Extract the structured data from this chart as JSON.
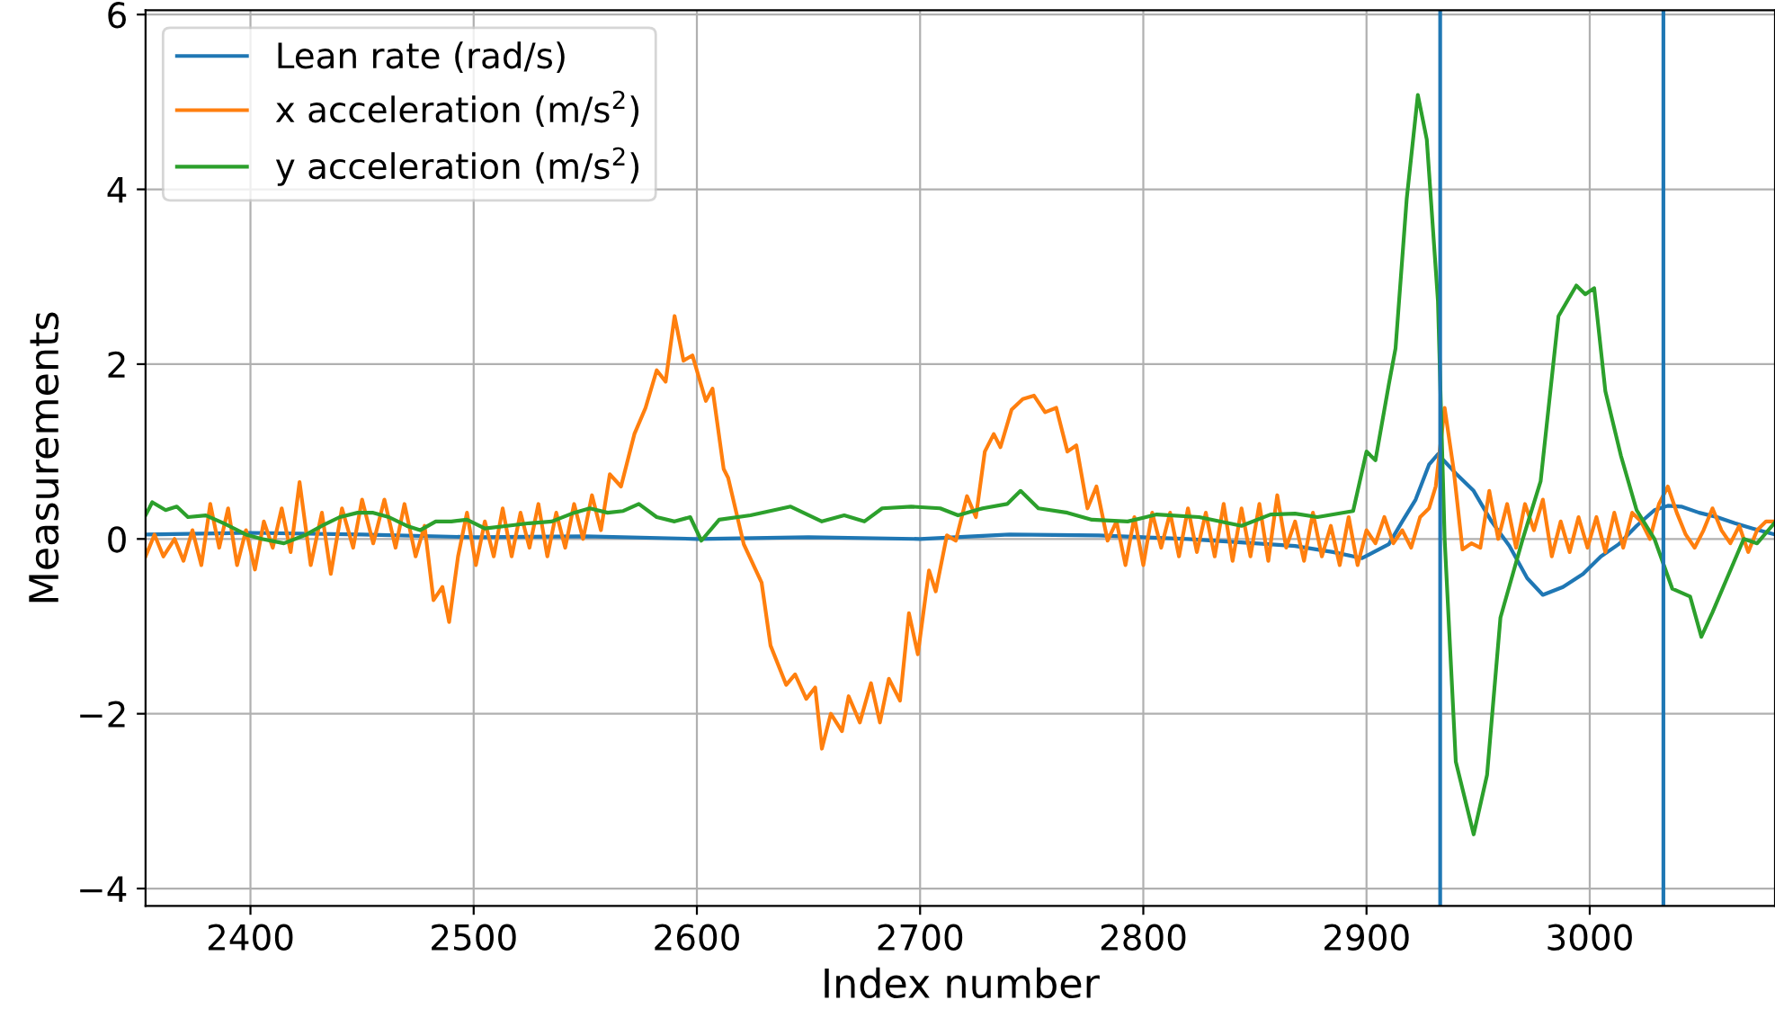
{
  "chart_data": {
    "type": "line",
    "xlabel": "Index number",
    "ylabel": "Measurements",
    "xlim": [
      2353,
      3083
    ],
    "ylim": [
      -4.2,
      6.05
    ],
    "xticks": [
      2400,
      2500,
      2600,
      2700,
      2800,
      2900,
      3000
    ],
    "yticks": [
      {
        "value": -4,
        "label": "−4"
      },
      {
        "value": -2,
        "label": "−2"
      },
      0,
      2,
      4,
      6
    ],
    "grid": true,
    "legend": "top left",
    "line_style": "solid",
    "marker": "none",
    "series": [
      {
        "name": "Lean rate (rad/s)",
        "color": "#1f77b4",
        "x": [
          2353,
          2400,
          2450,
          2500,
          2550,
          2600,
          2650,
          2700,
          2740,
          2780,
          2820,
          2850,
          2868,
          2885,
          2898,
          2910,
          2916,
          2922,
          2928,
          2932,
          2940,
          2948,
          2956,
          2964,
          2972,
          2979,
          2988,
          2997,
          3005,
          3013,
          3021,
          3029,
          3035,
          3041,
          3049,
          3057,
          3065,
          3073,
          3083
        ],
        "values": [
          0.05,
          0.07,
          0.05,
          0.02,
          0.03,
          0.0,
          0.02,
          0.0,
          0.05,
          0.04,
          0.0,
          -0.05,
          -0.08,
          -0.15,
          -0.22,
          -0.06,
          0.2,
          0.45,
          0.85,
          0.97,
          0.75,
          0.55,
          0.2,
          -0.08,
          -0.45,
          -0.64,
          -0.55,
          -0.4,
          -0.2,
          -0.06,
          0.15,
          0.33,
          0.38,
          0.37,
          0.3,
          0.25,
          0.18,
          0.12,
          0.05
        ]
      },
      {
        "name": "x acceleration (m/s$^{2}$)",
        "color": "#ff7f0e",
        "x": [
          2353,
          2357,
          2361,
          2366,
          2370,
          2374,
          2378,
          2382,
          2386,
          2390,
          2394,
          2398,
          2402,
          2406,
          2410,
          2414,
          2418,
          2422,
          2427,
          2432,
          2436,
          2441,
          2446,
          2450,
          2455,
          2460,
          2465,
          2469,
          2474,
          2478,
          2482,
          2486,
          2489,
          2493,
          2497,
          2501,
          2505,
          2509,
          2513,
          2517,
          2521,
          2525,
          2529,
          2533,
          2537,
          2541,
          2545,
          2549,
          2553,
          2557,
          2561,
          2566,
          2572,
          2577,
          2582,
          2586,
          2590,
          2594,
          2598,
          2604,
          2607,
          2612,
          2614,
          2621,
          2629,
          2633,
          2640,
          2644,
          2649,
          2653,
          2656,
          2660,
          2665,
          2668,
          2673,
          2678,
          2682,
          2686,
          2691,
          2695,
          2699,
          2704,
          2707,
          2712,
          2716,
          2721,
          2725,
          2729,
          2733,
          2736,
          2741,
          2746,
          2751,
          2756,
          2761,
          2766,
          2770,
          2775,
          2779,
          2784,
          2788,
          2792,
          2796,
          2800,
          2804,
          2808,
          2812,
          2816,
          2820,
          2824,
          2828,
          2832,
          2836,
          2840,
          2844,
          2848,
          2852,
          2856,
          2860,
          2864,
          2868,
          2872,
          2876,
          2880,
          2884,
          2888,
          2892,
          2896,
          2900,
          2904,
          2908,
          2912,
          2916,
          2920,
          2924,
          2928,
          2931,
          2935,
          2939,
          2943,
          2947,
          2951,
          2955,
          2959,
          2963,
          2967,
          2971,
          2975,
          2979,
          2983,
          2987,
          2991,
          2995,
          2999,
          3003,
          3007,
          3011,
          3015,
          3019,
          3023,
          3027,
          3031,
          3035,
          3039,
          3043,
          3047,
          3051,
          3055,
          3059,
          3063,
          3067,
          3071,
          3075,
          3079,
          3083
        ],
        "values": [
          -0.2,
          0.05,
          -0.2,
          0.0,
          -0.25,
          0.1,
          -0.3,
          0.4,
          -0.1,
          0.35,
          -0.3,
          0.1,
          -0.35,
          0.2,
          -0.1,
          0.35,
          -0.15,
          0.65,
          -0.3,
          0.3,
          -0.4,
          0.35,
          -0.1,
          0.45,
          -0.05,
          0.45,
          -0.1,
          0.4,
          -0.2,
          0.15,
          -0.7,
          -0.55,
          -0.95,
          -0.2,
          0.3,
          -0.3,
          0.2,
          -0.2,
          0.35,
          -0.2,
          0.3,
          -0.1,
          0.4,
          -0.2,
          0.3,
          -0.1,
          0.4,
          0.0,
          0.5,
          0.1,
          0.74,
          0.6,
          1.2,
          1.5,
          1.93,
          1.8,
          2.55,
          2.04,
          2.1,
          1.58,
          1.72,
          0.8,
          0.7,
          -0.06,
          -0.5,
          -1.22,
          -1.67,
          -1.55,
          -1.83,
          -1.7,
          -2.4,
          -2.0,
          -2.2,
          -1.8,
          -2.1,
          -1.65,
          -2.1,
          -1.6,
          -1.85,
          -0.85,
          -1.32,
          -0.36,
          -0.6,
          0.04,
          -0.02,
          0.49,
          0.25,
          1.0,
          1.2,
          1.05,
          1.48,
          1.6,
          1.64,
          1.45,
          1.5,
          1.0,
          1.07,
          0.35,
          0.6,
          -0.02,
          0.2,
          -0.3,
          0.25,
          -0.3,
          0.3,
          -0.1,
          0.3,
          -0.2,
          0.35,
          -0.15,
          0.3,
          -0.2,
          0.4,
          -0.25,
          0.35,
          -0.2,
          0.4,
          -0.25,
          0.5,
          -0.1,
          0.2,
          -0.25,
          0.3,
          -0.2,
          0.15,
          -0.3,
          0.25,
          -0.3,
          0.1,
          -0.05,
          0.25,
          -0.05,
          0.1,
          -0.1,
          0.25,
          0.35,
          0.6,
          1.5,
          0.8,
          -0.12,
          -0.05,
          -0.1,
          0.55,
          0.0,
          0.4,
          -0.1,
          0.4,
          0.1,
          0.45,
          -0.2,
          0.2,
          -0.15,
          0.25,
          -0.1,
          0.25,
          -0.15,
          0.3,
          -0.1,
          0.3,
          0.2,
          0.0,
          0.4,
          0.6,
          0.3,
          0.05,
          -0.1,
          0.1,
          0.35,
          0.1,
          -0.05,
          0.15,
          -0.15,
          0.1,
          0.2,
          0.2
        ]
      },
      {
        "name": "y acceleration (m/s$^{2}$)",
        "color": "#2ca02c",
        "x": [
          2353,
          2356,
          2362,
          2367,
          2372,
          2380,
          2388,
          2398,
          2405,
          2415,
          2425,
          2432,
          2440,
          2448,
          2455,
          2462,
          2470,
          2476,
          2483,
          2490,
          2497,
          2505,
          2515,
          2525,
          2535,
          2545,
          2552,
          2560,
          2567,
          2574,
          2582,
          2590,
          2597,
          2602,
          2610,
          2624,
          2642,
          2656,
          2666,
          2675,
          2683,
          2696,
          2709,
          2717,
          2728,
          2739,
          2745,
          2753,
          2766,
          2777,
          2793,
          2806,
          2825,
          2844,
          2857,
          2868,
          2878,
          2894,
          2900,
          2904,
          2910,
          2913,
          2918,
          2923,
          2927,
          2932,
          2935,
          2940,
          2948,
          2954,
          2960,
          2970,
          2978,
          2986,
          2994,
          2998,
          3002,
          3007,
          3014,
          3021,
          3029,
          3037,
          3045,
          3050,
          3055,
          3069,
          3075,
          3083
        ],
        "values": [
          0.27,
          0.42,
          0.33,
          0.37,
          0.25,
          0.27,
          0.18,
          0.05,
          0.0,
          -0.05,
          0.05,
          0.15,
          0.25,
          0.3,
          0.3,
          0.25,
          0.15,
          0.1,
          0.2,
          0.2,
          0.22,
          0.12,
          0.15,
          0.18,
          0.2,
          0.3,
          0.35,
          0.3,
          0.32,
          0.4,
          0.25,
          0.2,
          0.25,
          -0.02,
          0.22,
          0.27,
          0.37,
          0.2,
          0.27,
          0.2,
          0.35,
          0.37,
          0.35,
          0.27,
          0.35,
          0.4,
          0.55,
          0.35,
          0.3,
          0.22,
          0.2,
          0.28,
          0.25,
          0.15,
          0.28,
          0.29,
          0.25,
          0.32,
          1.0,
          0.9,
          1.77,
          2.18,
          3.89,
          5.08,
          4.57,
          2.72,
          0.0,
          -2.55,
          -3.38,
          -2.7,
          -0.9,
          0.0,
          0.66,
          2.55,
          2.9,
          2.8,
          2.87,
          1.69,
          0.95,
          0.33,
          0.0,
          -0.57,
          -0.66,
          -1.12,
          -0.84,
          0.0,
          -0.05,
          0.19
        ]
      }
    ],
    "ref_lines": [
      {
        "axis": "x",
        "value": 2933,
        "color": "#1f77b4"
      },
      {
        "axis": "x",
        "value": 3033,
        "color": "#1f77b4"
      }
    ]
  }
}
